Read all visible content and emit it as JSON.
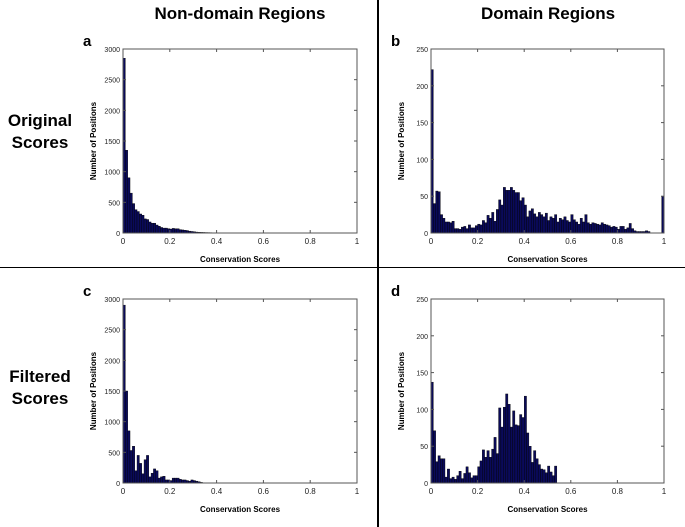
{
  "column_headers": [
    "Non-domain Regions",
    "Domain Regions"
  ],
  "row_headers": [
    [
      "Original",
      "Scores"
    ],
    [
      "Filtered",
      "Scores"
    ]
  ],
  "bar_color": "#0a0a5a",
  "chart_data": [
    {
      "panel": "a",
      "type": "bar",
      "xlabel": "Conservation Scores",
      "ylabel": "Number of Positions",
      "xlim": [
        0,
        1
      ],
      "ylim": [
        0,
        3000
      ],
      "xticks": [
        "0",
        "0.2",
        "0.4",
        "0.6",
        "0.8",
        "1"
      ],
      "yticks": [
        "0",
        "500",
        "1000",
        "1500",
        "2000",
        "2500",
        "3000"
      ],
      "bin_width": 0.01,
      "values": [
        2850,
        1350,
        900,
        650,
        480,
        380,
        350,
        310,
        290,
        230,
        220,
        180,
        160,
        160,
        130,
        110,
        90,
        80,
        80,
        70,
        65,
        75,
        70,
        70,
        55,
        50,
        45,
        40,
        30,
        25,
        20,
        15,
        12,
        10,
        9,
        8,
        7,
        6,
        5,
        5,
        4,
        4,
        3,
        3,
        3,
        3,
        2,
        3,
        2,
        2,
        3,
        2,
        2,
        2,
        2,
        3,
        2,
        2,
        2,
        2,
        2,
        2,
        2,
        2,
        2,
        2,
        2,
        2,
        2,
        3,
        2,
        2,
        2,
        2,
        2,
        2,
        2,
        2,
        2,
        2,
        2,
        2,
        2,
        2,
        2,
        2,
        2,
        2,
        2,
        3,
        2,
        2,
        2,
        2,
        2,
        2,
        2,
        2,
        2,
        2
      ]
    },
    {
      "panel": "b",
      "type": "bar",
      "xlabel": "Conservation Scores",
      "ylabel": "Number of Positions",
      "xlim": [
        0,
        1
      ],
      "ylim": [
        0,
        250
      ],
      "xticks": [
        "0",
        "0.2",
        "0.4",
        "0.6",
        "0.8",
        "1"
      ],
      "yticks": [
        "0",
        "50",
        "100",
        "150",
        "200",
        "250"
      ],
      "bin_width": 0.01,
      "values": [
        222,
        40,
        57,
        56,
        25,
        20,
        15,
        15,
        14,
        16,
        6,
        6,
        5,
        8,
        9,
        6,
        11,
        7,
        7,
        10,
        12,
        11,
        17,
        14,
        24,
        20,
        28,
        16,
        32,
        45,
        38,
        62,
        58,
        58,
        62,
        58,
        55,
        55,
        44,
        48,
        38,
        22,
        30,
        33,
        26,
        22,
        28,
        25,
        22,
        27,
        17,
        22,
        20,
        25,
        15,
        20,
        18,
        22,
        17,
        15,
        25,
        18,
        15,
        12,
        20,
        15,
        25,
        14,
        12,
        14,
        13,
        12,
        11,
        14,
        12,
        11,
        10,
        8,
        9,
        8,
        5,
        9,
        9,
        5,
        7,
        13,
        6,
        3,
        2,
        2,
        2,
        2,
        3,
        2,
        0,
        0,
        0,
        0,
        0,
        50
      ]
    },
    {
      "panel": "c",
      "type": "bar",
      "xlabel": "Conservation Scores",
      "ylabel": "Number of Positions",
      "xlim": [
        0,
        1
      ],
      "ylim": [
        0,
        3000
      ],
      "xticks": [
        "0",
        "0.2",
        "0.4",
        "0.6",
        "0.8",
        "1"
      ],
      "yticks": [
        "0",
        "500",
        "1000",
        "1500",
        "2000",
        "2500",
        "3000"
      ],
      "bin_width": 0.01,
      "values": [
        2900,
        1500,
        850,
        530,
        600,
        200,
        450,
        320,
        150,
        380,
        450,
        100,
        160,
        230,
        200,
        80,
        100,
        110,
        50,
        50,
        40,
        80,
        80,
        80,
        60,
        50,
        50,
        40,
        30,
        50,
        40,
        30,
        20,
        10,
        5,
        3
      ]
    },
    {
      "panel": "d",
      "type": "bar",
      "xlabel": "Conservation Scores",
      "ylabel": "Number of Positions",
      "xlim": [
        0,
        1
      ],
      "ylim": [
        0,
        250
      ],
      "xticks": [
        "0",
        "0.2",
        "0.4",
        "0.6",
        "0.8",
        "1"
      ],
      "yticks": [
        "0",
        "50",
        "100",
        "150",
        "200",
        "250"
      ],
      "bin_width": 0.01,
      "values": [
        137,
        71,
        29,
        37,
        33,
        33,
        8,
        19,
        6,
        8,
        5,
        10,
        16,
        6,
        13,
        22,
        14,
        7,
        10,
        10,
        22,
        30,
        45,
        35,
        44,
        35,
        46,
        62,
        40,
        102,
        76,
        103,
        121,
        107,
        76,
        98,
        79,
        78,
        93,
        89,
        118,
        68,
        50,
        28,
        44,
        33,
        25,
        19,
        18,
        14,
        23,
        15,
        10,
        23
      ]
    }
  ]
}
